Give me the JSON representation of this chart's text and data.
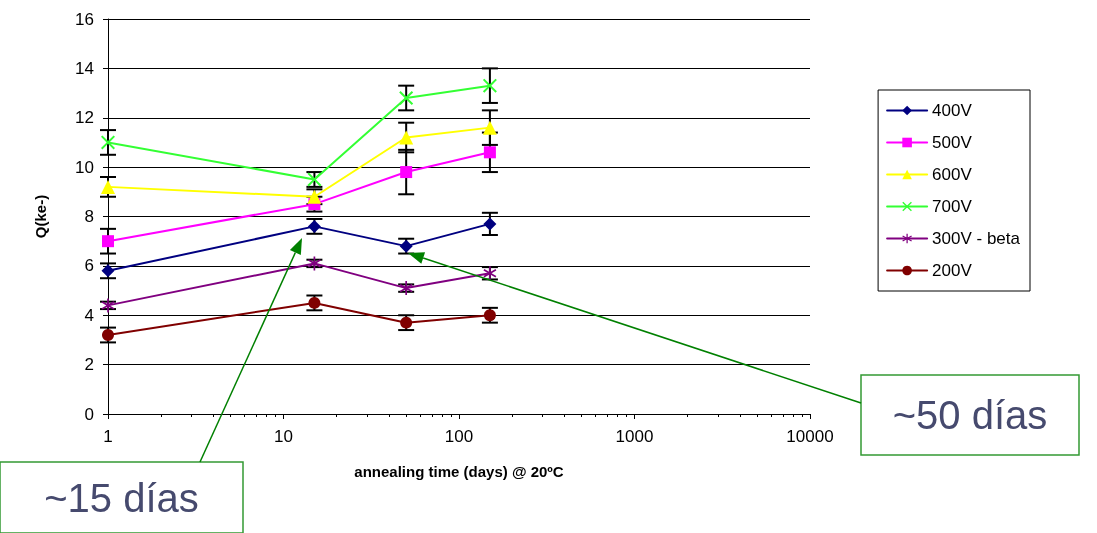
{
  "chart_data": {
    "type": "line",
    "xlabel": "annealing time (days) @ 20ºC",
    "ylabel": "Q(ke-)",
    "x": [
      1,
      15,
      50,
      150
    ],
    "log": "x",
    "xlim": [
      1,
      10000
    ],
    "xticks": [
      1,
      10,
      100,
      1000,
      10000
    ],
    "ylim": [
      0,
      16
    ],
    "yticks": [
      0,
      2,
      4,
      6,
      8,
      10,
      12,
      14,
      16
    ],
    "grid": "y",
    "legend": "right",
    "line_style": "solid",
    "series": [
      {
        "name": "400V",
        "color": "#000080",
        "marker": "diamond",
        "values": [
          5.8,
          7.6,
          6.8,
          7.7
        ],
        "errors": [
          0.3,
          0.3,
          0.3,
          0.45
        ]
      },
      {
        "name": "500V",
        "color": "#ff00ff",
        "marker": "square",
        "values": [
          7.0,
          8.5,
          9.8,
          10.6
        ],
        "errors": [
          0.5,
          0.3,
          0.9,
          0.8
        ]
      },
      {
        "name": "600V",
        "color": "#ffff00",
        "marker": "triangle",
        "values": [
          9.2,
          8.8,
          11.2,
          11.6
        ],
        "errors": [
          0.4,
          0.3,
          0.6,
          0.7
        ]
      },
      {
        "name": "700V",
        "color": "#33ff33",
        "marker": "cross",
        "values": [
          11.0,
          9.5,
          12.8,
          13.3
        ],
        "errors": [
          0.5,
          0.3,
          0.5,
          0.7
        ]
      },
      {
        "name": "300V - beta",
        "color": "#800080",
        "marker": "star",
        "values": [
          4.4,
          6.1,
          5.1,
          5.7
        ],
        "errors": [
          0.15,
          0.15,
          0.15,
          0.25
        ]
      },
      {
        "name": "200V",
        "color": "#800000",
        "marker": "circle",
        "values": [
          3.2,
          4.5,
          3.7,
          4.0
        ],
        "errors": [
          0.3,
          0.3,
          0.3,
          0.3
        ]
      }
    ],
    "annotations": [
      "~15 días",
      "~50 días"
    ]
  }
}
